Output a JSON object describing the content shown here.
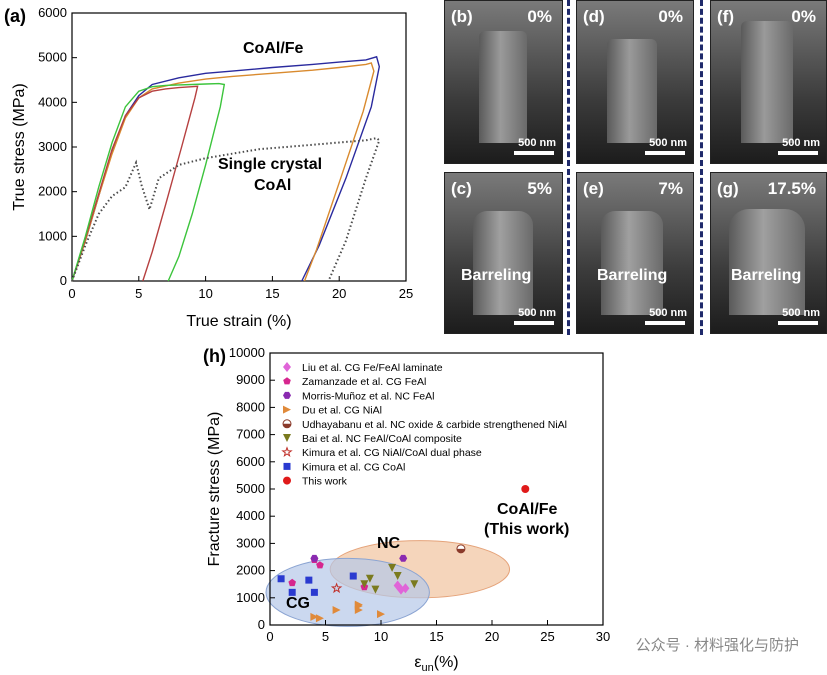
{
  "panel_a": {
    "label": "(a)",
    "annotation_1": "CoAl/Fe",
    "annotation_2": "Single crystal",
    "annotation_3": "CoAl"
  },
  "panel_h": {
    "label": "(h)",
    "annotation_1": "NC",
    "annotation_2": "CG",
    "annotation_3": "CoAl/Fe",
    "annotation_4": "(This work)"
  },
  "sem_panels": [
    {
      "id": "b",
      "label": "(b)",
      "pct": "0%",
      "scale": "500 nm",
      "barreling": ""
    },
    {
      "id": "d",
      "label": "(d)",
      "pct": "0%",
      "scale": "500 nm",
      "barreling": ""
    },
    {
      "id": "f",
      "label": "(f)",
      "pct": "0%",
      "scale": "500 nm",
      "barreling": ""
    },
    {
      "id": "c",
      "label": "(c)",
      "pct": "5%",
      "scale": "500 nm",
      "barreling": "Barreling"
    },
    {
      "id": "e",
      "label": "(e)",
      "pct": "7%",
      "scale": "500 nm",
      "barreling": "Barreling"
    },
    {
      "id": "g",
      "label": "(g)",
      "pct": "17.5%",
      "scale": "500 nm",
      "barreling": "Barreling"
    }
  ],
  "watermark": "公众号 · 材料强化与防护",
  "chart_data": [
    {
      "type": "line",
      "xlabel": "True strain (%)",
      "ylabel": "True stress (MPa)",
      "xlim": [
        0,
        25
      ],
      "ylim": [
        0,
        6000
      ],
      "xticks": [
        0,
        5,
        10,
        15,
        20,
        25
      ],
      "yticks": [
        0,
        1000,
        2000,
        3000,
        4000,
        5000,
        6000
      ],
      "series": [
        {
          "color": "#2a2a9e",
          "dotted": false,
          "x": [
            0,
            1,
            2,
            3,
            4,
            5,
            6,
            8,
            10,
            12,
            15,
            18,
            20,
            22,
            22.8,
            23.0,
            22.4,
            20.5,
            18.5,
            17.2
          ],
          "y": [
            0,
            900,
            1900,
            2900,
            3700,
            4150,
            4400,
            4550,
            4650,
            4700,
            4780,
            4850,
            4900,
            4950,
            5020,
            4800,
            3900,
            2300,
            800,
            0
          ]
        },
        {
          "color": "#d98a2e",
          "dotted": false,
          "x": [
            0,
            1,
            2,
            3,
            4,
            5,
            6,
            8,
            10,
            12,
            15,
            18,
            20,
            22,
            22.4,
            22.6,
            21.8,
            20,
            18.3,
            17.4
          ],
          "y": [
            0,
            900,
            1900,
            2850,
            3650,
            4100,
            4300,
            4430,
            4520,
            4580,
            4650,
            4720,
            4780,
            4850,
            4880,
            4700,
            3800,
            2200,
            700,
            0
          ]
        },
        {
          "color": "#b64040",
          "dotted": false,
          "x": [
            0,
            1,
            2,
            3,
            4,
            5,
            6,
            7,
            8,
            9,
            9.4,
            9.2,
            8.2,
            7,
            6,
            5.3
          ],
          "y": [
            0,
            950,
            1950,
            2950,
            3700,
            4100,
            4250,
            4300,
            4330,
            4350,
            4360,
            4100,
            3000,
            1700,
            650,
            0
          ]
        },
        {
          "color": "#3cc43c",
          "dotted": false,
          "x": [
            0,
            1,
            2,
            3,
            4,
            5,
            6,
            7,
            8,
            9,
            10,
            11,
            11.4,
            11.1,
            10,
            9,
            8,
            7.2
          ],
          "y": [
            0,
            1000,
            2100,
            3100,
            3900,
            4250,
            4350,
            4380,
            4390,
            4400,
            4410,
            4420,
            4400,
            3900,
            2600,
            1500,
            550,
            0
          ]
        },
        {
          "color": "#4a4a4a",
          "dotted": true,
          "x": [
            0,
            1,
            2,
            3,
            4,
            4.8,
            5.2,
            5.8,
            6.5,
            8,
            10,
            12,
            14,
            16,
            18,
            20,
            22,
            22.8,
            23.0,
            22.0,
            20.5,
            19.2
          ],
          "y": [
            0,
            800,
            1500,
            1900,
            2100,
            2650,
            2150,
            1600,
            2300,
            2600,
            2750,
            2850,
            2950,
            3000,
            3050,
            3100,
            3150,
            3200,
            3150,
            2300,
            900,
            0
          ]
        }
      ]
    },
    {
      "type": "scatter",
      "xlabel": "ε_un(%)",
      "ylabel": "Fracture stress (MPa)",
      "xlim": [
        0,
        30
      ],
      "ylim": [
        0,
        10000
      ],
      "xticks": [
        0,
        5,
        10,
        15,
        20,
        25,
        30
      ],
      "yticks": [
        0,
        1000,
        2000,
        3000,
        4000,
        5000,
        6000,
        7000,
        8000,
        9000,
        10000
      ],
      "series": [
        {
          "name": "Liu et al. CG Fe/FeAl laminate",
          "marker": "diamond",
          "color": "#e064d8",
          "x": [
            11.5,
            11.8,
            12.2
          ],
          "y": [
            1450,
            1300,
            1350
          ]
        },
        {
          "name": "Zamanzade et al. CG FeAl",
          "marker": "pentagon",
          "color": "#d6268e",
          "x": [
            4,
            2,
            4.5,
            8.5
          ],
          "y": [
            2400,
            1550,
            2200,
            1400
          ]
        },
        {
          "name": "Morris-Muñoz et al. NC FeAl",
          "marker": "hexagon",
          "color": "#8a2ab0",
          "x": [
            12,
            4
          ],
          "y": [
            2450,
            2450
          ]
        },
        {
          "name": "Du et al. CG NiAl",
          "marker": "tri-right",
          "color": "#e08a3a",
          "x": [
            4,
            4.5,
            6,
            8,
            8,
            10,
            8
          ],
          "y": [
            300,
            250,
            550,
            550,
            700,
            400,
            750
          ]
        },
        {
          "name": "Udhayabanu et al. NC oxide & carbide strengthened NiAl",
          "marker": "half-circle",
          "color": "#8a3a2a",
          "x": [
            17.2
          ],
          "y": [
            2800
          ]
        },
        {
          "name": "Bai et al. NC FeAl/CoAl composite",
          "marker": "tri-down",
          "color": "#7a7a1e",
          "x": [
            11,
            11.5,
            13,
            9,
            8.5,
            9.5
          ],
          "y": [
            2100,
            1800,
            1500,
            1700,
            1500,
            1300
          ]
        },
        {
          "name": "Kimura et al. CG NiAl/CoAl dual phase",
          "marker": "star",
          "color": "#c0302a",
          "x": [
            6
          ],
          "y": [
            1350
          ]
        },
        {
          "name": "Kimura et al. CG CoAl",
          "marker": "square",
          "color": "#2a3ad0",
          "x": [
            1,
            2,
            3.5,
            4,
            7.5
          ],
          "y": [
            1700,
            1200,
            1650,
            1200,
            1800
          ]
        },
        {
          "name": "This work",
          "marker": "circle",
          "color": "#e01a1a",
          "x": [
            23
          ],
          "y": [
            5000
          ]
        }
      ]
    }
  ]
}
